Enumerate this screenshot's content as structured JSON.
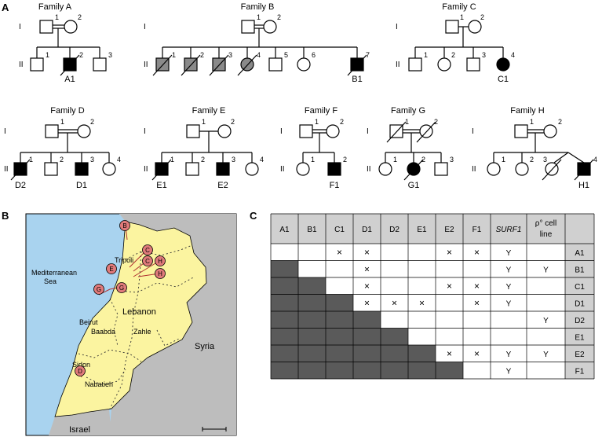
{
  "panels": {
    "a": "A",
    "b": "B",
    "c": "C"
  },
  "gen_roman": [
    "I",
    "II"
  ],
  "families": [
    {
      "title": "Family A",
      "proband": "A1"
    },
    {
      "title": "Family B",
      "proband": "B1"
    },
    {
      "title": "Family C",
      "proband": "C1"
    },
    {
      "title": "Family D",
      "proband1": "D2",
      "proband2": "D1"
    },
    {
      "title": "Family E",
      "proband1": "E1",
      "proband2": "E2"
    },
    {
      "title": "Family F",
      "proband": "F1"
    },
    {
      "title": "Family G",
      "proband": "G1"
    },
    {
      "title": "Family H",
      "proband": "H1"
    }
  ],
  "nums": [
    "1",
    "2",
    "3",
    "4",
    "5",
    "6",
    "7"
  ],
  "map": {
    "sea": "Mediterranean\nSea",
    "sea1": "Mediterranean",
    "sea2": "Sea",
    "country": "Lebanon",
    "syria": "Syria",
    "israel": "Israel",
    "cities": [
      "Tripoli",
      "Beirut",
      "Baabda",
      "Zahle",
      "Sidon",
      "Nabatieh"
    ],
    "markers": [
      "B",
      "C",
      "E",
      "C",
      "H",
      "H",
      "G",
      "G",
      "D"
    ],
    "colors": {
      "sea": "#a9d3ef",
      "land": "#fbf4a0",
      "neighbor": "#bdbdbd",
      "marker": "#e07a7a"
    }
  },
  "table": {
    "headers": [
      "A1",
      "B1",
      "C1",
      "D1",
      "D2",
      "E1",
      "E2",
      "F1"
    ],
    "surf1": "SURF1",
    "rho1": "ρ° cell",
    "rho2": "line",
    "mark": "×",
    "yes": "Y",
    "rows": [
      {
        "label": "A1",
        "marks": [
          "",
          "",
          "×",
          "×",
          "",
          "",
          "×",
          "×"
        ],
        "surf1": "Y",
        "rho": ""
      },
      {
        "label": "B1",
        "marks": [
          "",
          "",
          "",
          "×",
          "",
          "",
          "",
          ""
        ],
        "surf1": "Y",
        "rho": "Y"
      },
      {
        "label": "C1",
        "marks": [
          "",
          "",
          "",
          "×",
          "",
          "",
          "×",
          "×"
        ],
        "surf1": "Y",
        "rho": ""
      },
      {
        "label": "D1",
        "marks": [
          "",
          "",
          "",
          "×",
          "×",
          "×",
          "",
          "×"
        ],
        "surf1": "Y",
        "rho": ""
      },
      {
        "label": "D2",
        "marks": [
          "",
          "",
          "",
          "",
          "",
          "",
          "",
          ""
        ],
        "surf1": "",
        "rho": "Y"
      },
      {
        "label": "E1",
        "marks": [
          "",
          "",
          "",
          "",
          "",
          "",
          "",
          ""
        ],
        "surf1": "",
        "rho": ""
      },
      {
        "label": "E2",
        "marks": [
          "",
          "",
          "",
          "",
          "",
          "",
          "×",
          "×"
        ],
        "surf1": "Y",
        "rho": "Y"
      },
      {
        "label": "F1",
        "marks": [
          "",
          "",
          "",
          "",
          "",
          "",
          "",
          ""
        ],
        "surf1": "Y",
        "rho": ""
      }
    ],
    "colors": {
      "header": "#d0d0d0",
      "shade": "#5a5a5a"
    }
  }
}
